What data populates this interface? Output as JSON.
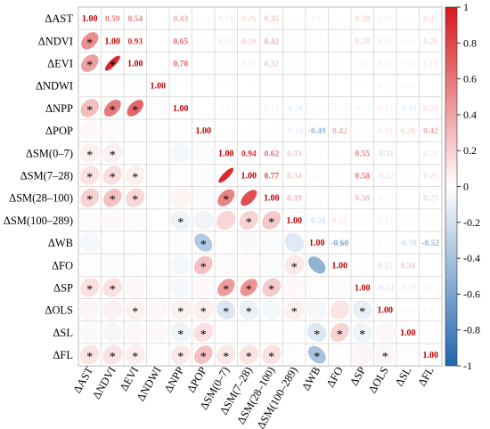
{
  "chart_data": {
    "type": "heatmap",
    "variables": [
      "ΔAST",
      "ΔNDVI",
      "ΔEVI",
      "ΔNDWI",
      "ΔNPP",
      "ΔPOP",
      "ΔSM(0–7)",
      "ΔSM(7–28)",
      "ΔSM(28–100)",
      "ΔSM(100–289)",
      "ΔWB",
      "ΔFO",
      "ΔSP",
      "ΔOLS",
      "ΔSL",
      "ΔFL"
    ],
    "diagonal_label": "1.00",
    "upper_triangle_values": [
      [
        null,
        0.59,
        0.54,
        0.02,
        0.43,
        0.1,
        0.18,
        0.26,
        0.35,
        0.07,
        -0.15,
        -0.06,
        0.28,
        0.13,
        -0.11,
        0.25
      ],
      [
        null,
        null,
        0.93,
        0.02,
        0.65,
        0.08,
        0.18,
        0.29,
        0.42,
        0.1,
        -0.04,
        -0.07,
        0.28,
        0.17,
        -0.14,
        0.26
      ],
      [
        null,
        null,
        null,
        -0.04,
        0.7,
        0.03,
        0.06,
        0.17,
        0.32,
        0.07,
        0.02,
        -0.06,
        0.11,
        0.17,
        0.12,
        0.19
      ],
      [
        null,
        null,
        null,
        null,
        0.06,
        0.03,
        -0.06,
        -0.04,
        0.03,
        0.01,
        0.02,
        0.02,
        0.06,
        0.12,
        0.09,
        0.02
      ],
      [
        null,
        null,
        null,
        null,
        null,
        0.02,
        -0.14,
        0.04,
        0.15,
        -0.2,
        -0.08,
        -0.14,
        -0.15,
        0.17,
        -0.19,
        0.23
      ],
      [
        null,
        null,
        null,
        null,
        null,
        null,
        -0.1,
        -0.07,
        -0.1,
        -0.18,
        -0.49,
        0.42,
        0.09,
        0.19,
        0.28,
        0.42
      ],
      [
        null,
        null,
        null,
        null,
        null,
        null,
        null,
        0.94,
        0.62,
        0.33,
        -0.02,
        0.08,
        0.55,
        -0.31,
        0.02,
        0.22
      ],
      [
        null,
        null,
        null,
        null,
        null,
        null,
        null,
        null,
        0.77,
        0.34,
        -0.11,
        0.08,
        0.58,
        -0.22,
        0.05,
        0.25
      ],
      [
        null,
        null,
        null,
        null,
        null,
        null,
        null,
        null,
        null,
        0.39,
        -0.1,
        -0.08,
        0.38,
        -0.15,
        0.03,
        0.27
      ],
      [
        null,
        null,
        null,
        null,
        null,
        null,
        null,
        null,
        null,
        null,
        -0.28,
        0.22,
        0.1,
        0.17,
        -0.06,
        -0.06
      ],
      [
        null,
        null,
        null,
        null,
        null,
        null,
        null,
        null,
        null,
        null,
        null,
        -0.6,
        0.05,
        -0.14,
        -0.3,
        -0.52
      ],
      [
        null,
        null,
        null,
        null,
        null,
        null,
        null,
        null,
        null,
        null,
        null,
        null,
        0.07,
        0.25,
        0.34,
        0.03
      ],
      [
        null,
        null,
        null,
        null,
        null,
        null,
        null,
        null,
        null,
        null,
        null,
        null,
        null,
        -0.24,
        -0.19,
        0.13
      ],
      [
        null,
        null,
        null,
        null,
        null,
        null,
        null,
        null,
        null,
        null,
        null,
        null,
        null,
        null,
        0.12,
        0.12
      ],
      [
        null,
        null,
        null,
        null,
        null,
        null,
        null,
        null,
        null,
        null,
        null,
        null,
        null,
        null,
        null,
        0.06
      ],
      [
        null,
        null,
        null,
        null,
        null,
        null,
        null,
        null,
        null,
        null,
        null,
        null,
        null,
        null,
        null,
        null
      ]
    ],
    "significance_marker": "*",
    "significant_pairs": [
      [
        1,
        0
      ],
      [
        2,
        0
      ],
      [
        2,
        1
      ],
      [
        4,
        0
      ],
      [
        4,
        1
      ],
      [
        4,
        2
      ],
      [
        6,
        0
      ],
      [
        6,
        1
      ],
      [
        7,
        0
      ],
      [
        7,
        1
      ],
      [
        7,
        2
      ],
      [
        8,
        0
      ],
      [
        8,
        1
      ],
      [
        8,
        2
      ],
      [
        9,
        4
      ],
      [
        10,
        5
      ],
      [
        11,
        5
      ],
      [
        8,
        6
      ],
      [
        9,
        7
      ],
      [
        9,
        8
      ],
      [
        11,
        9
      ],
      [
        12,
        0
      ],
      [
        12,
        1
      ],
      [
        12,
        6
      ],
      [
        12,
        7
      ],
      [
        12,
        8
      ],
      [
        13,
        2
      ],
      [
        13,
        4
      ],
      [
        13,
        5
      ],
      [
        13,
        6
      ],
      [
        13,
        7
      ],
      [
        13,
        9
      ],
      [
        13,
        12
      ],
      [
        14,
        4
      ],
      [
        14,
        5
      ],
      [
        14,
        10
      ],
      [
        14,
        11
      ],
      [
        14,
        12
      ],
      [
        15,
        0
      ],
      [
        15,
        1
      ],
      [
        15,
        2
      ],
      [
        15,
        4
      ],
      [
        15,
        5
      ],
      [
        15,
        6
      ],
      [
        15,
        7
      ],
      [
        15,
        8
      ],
      [
        15,
        10
      ],
      [
        15,
        13
      ]
    ],
    "colorbar": {
      "ticks": [
        "1",
        "0.8",
        "0.6",
        "0.4",
        "0.2",
        "0",
        "-0.2",
        "-0.4",
        "-0.6",
        "-0.8",
        "-1"
      ],
      "range": [
        -1,
        1
      ],
      "low_color": "#2166ac",
      "mid_color": "#ffffff",
      "high_color": "#d7191c"
    }
  }
}
